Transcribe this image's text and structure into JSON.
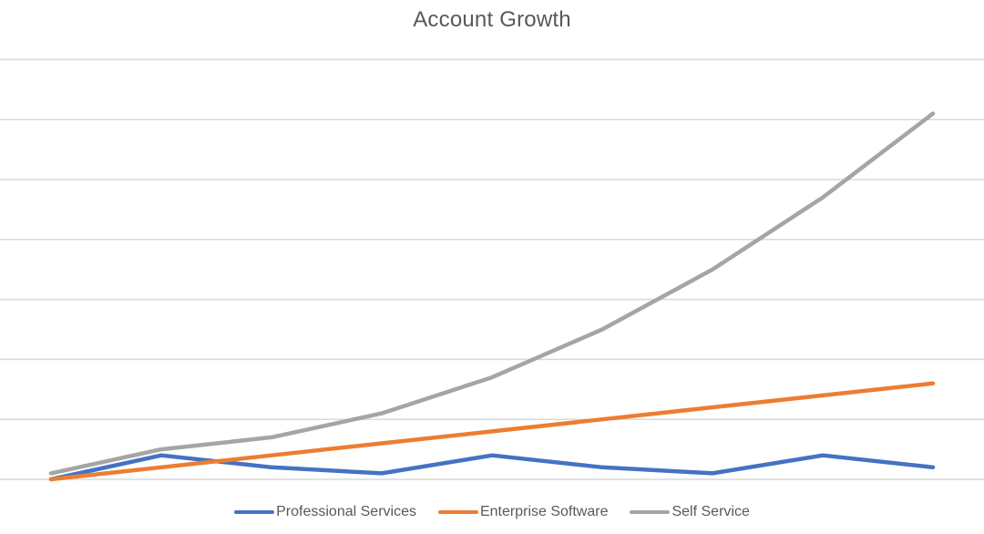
{
  "chart_data": {
    "type": "line",
    "title": "Account Growth",
    "xlabel": "",
    "ylabel": "",
    "x": [
      1,
      2,
      3,
      4,
      5,
      6,
      7,
      8,
      9
    ],
    "ylim": [
      0,
      7
    ],
    "grid": true,
    "y_ticks_visible": false,
    "x_ticks_visible": false,
    "legend_position": "bottom",
    "series": [
      {
        "name": "Professional Services",
        "color": "#4472C4",
        "values": [
          0,
          0.4,
          0.2,
          0.1,
          0.4,
          0.2,
          0.1,
          0.4,
          0.2
        ]
      },
      {
        "name": "Enterprise Software",
        "color": "#ED7D31",
        "values": [
          0,
          0.2,
          0.4,
          0.6,
          0.8,
          1.0,
          1.2,
          1.4,
          1.6
        ]
      },
      {
        "name": "Self Service",
        "color": "#A5A5A5",
        "values": [
          0.1,
          0.5,
          0.7,
          1.1,
          1.7,
          2.5,
          3.5,
          4.7,
          6.1
        ]
      }
    ]
  },
  "legend": {
    "items": [
      {
        "label": "Professional Services",
        "color": "#4472C4"
      },
      {
        "label": "Enterprise Software",
        "color": "#ED7D31"
      },
      {
        "label": "Self Service",
        "color": "#A5A5A5"
      }
    ]
  },
  "colors": {
    "gridline": "#D9D9D9",
    "title": "#595959",
    "background": "#FFFFFF"
  }
}
